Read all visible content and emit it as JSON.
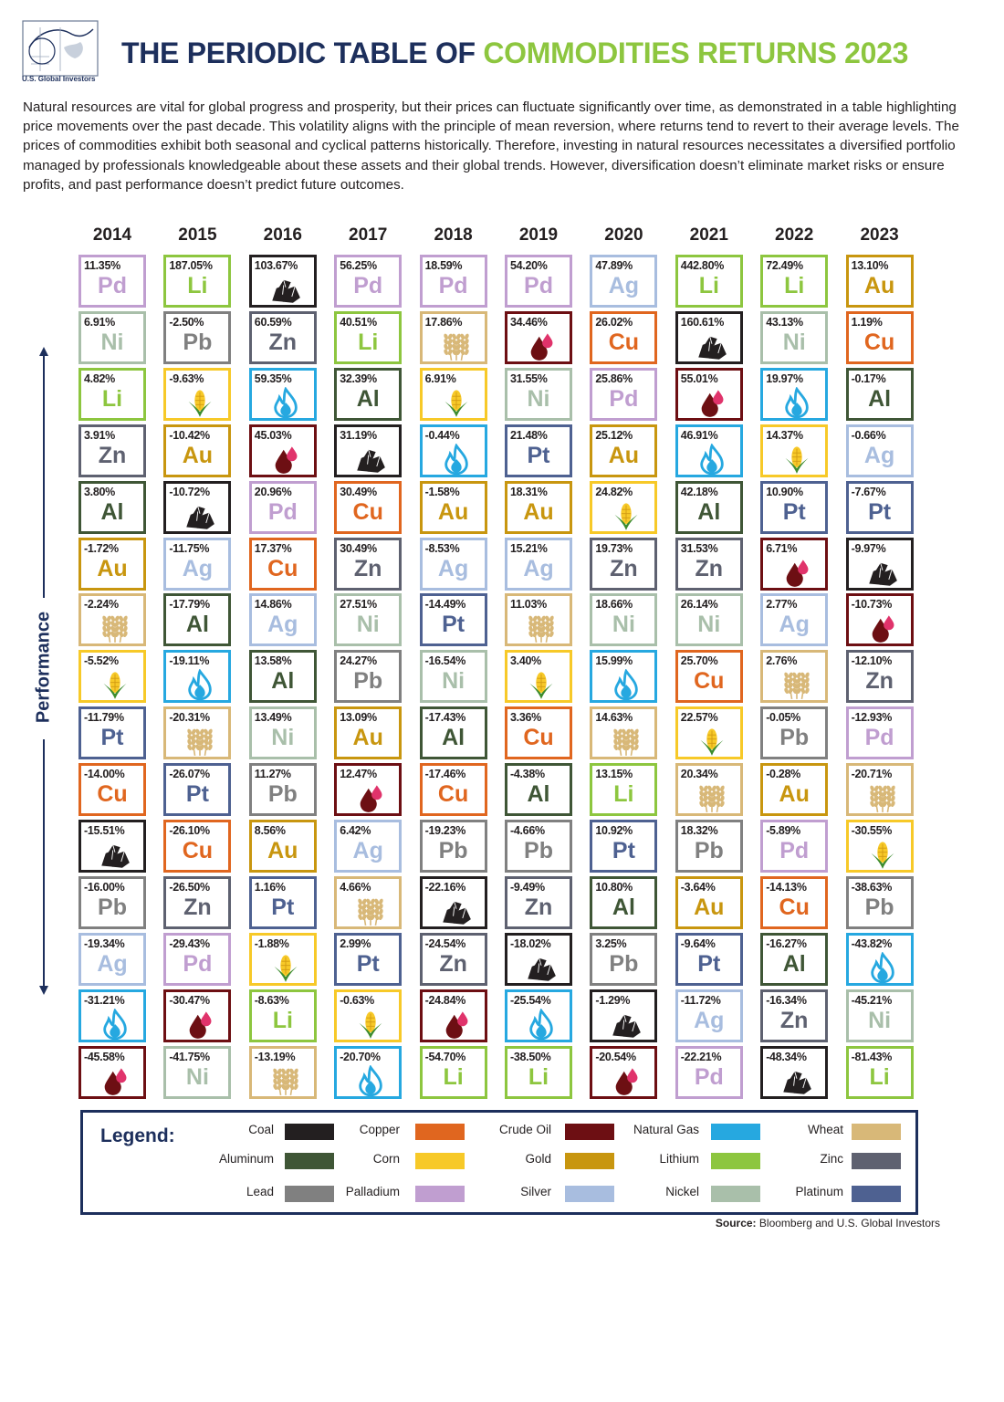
{
  "header": {
    "logo_text": "U.S. Global Investors",
    "title_part1": "THE PERIODIC TABLE OF ",
    "title_part2": "COMMODITIES RETURNS 2023",
    "intro": "Natural resources are vital for global progress and prosperity, but their prices can fluctuate significantly over time, as demonstrated in a table highlighting price movements over the past decade. This volatility aligns with the principle of mean reversion, where returns tend to revert to their average levels. The prices of commodities exhibit both seasonal and cyclical patterns historically. Therefore, investing in natural resources necessitates a diversified portfolio managed by professionals knowledgeable about these assets and their global trends. However, diversification doesn’t eliminate market risks or ensure profits, and past performance doesn’t predict future outcomes."
  },
  "axis_label": "Performance",
  "legend": {
    "title": "Legend:",
    "items": [
      {
        "name": "Coal",
        "color": "#231f20",
        "icon": "coal"
      },
      {
        "name": "Aluminum",
        "color": "#3f5636",
        "symbol": "Al"
      },
      {
        "name": "Lead",
        "color": "#808080",
        "symbol": "Pb"
      },
      {
        "name": "Copper",
        "color": "#e0661f",
        "symbol": "Cu"
      },
      {
        "name": "Corn",
        "color": "#f7c928",
        "icon": "corn"
      },
      {
        "name": "Palladium",
        "color": "#c09ed0",
        "symbol": "Pd"
      },
      {
        "name": "Crude Oil",
        "color": "#6d0f13",
        "icon": "oil"
      },
      {
        "name": "Gold",
        "color": "#c8960f",
        "symbol": "Au"
      },
      {
        "name": "Silver",
        "color": "#a8bddf",
        "symbol": "Ag"
      },
      {
        "name": "Natural Gas",
        "color": "#26a8e0",
        "icon": "gas"
      },
      {
        "name": "Lithium",
        "color": "#8dc63f",
        "symbol": "Li"
      },
      {
        "name": "Nickel",
        "color": "#a9bfaa",
        "symbol": "Ni"
      },
      {
        "name": "Wheat",
        "color": "#d8b878",
        "icon": "wheat"
      },
      {
        "name": "Zinc",
        "color": "#5e6170",
        "symbol": "Zn"
      },
      {
        "name": "Platinum",
        "color": "#4e6191",
        "symbol": "Pt"
      }
    ]
  },
  "table": {
    "columns": [
      {
        "year": "2014",
        "cells": [
          {
            "r": "11.35%",
            "c": "Palladium"
          },
          {
            "r": "6.91%",
            "c": "Nickel"
          },
          {
            "r": "4.82%",
            "c": "Lithium"
          },
          {
            "r": "3.91%",
            "c": "Zinc"
          },
          {
            "r": "3.80%",
            "c": "Aluminum"
          },
          {
            "r": "-1.72%",
            "c": "Gold"
          },
          {
            "r": "-2.24%",
            "c": "Wheat"
          },
          {
            "r": "-5.52%",
            "c": "Corn"
          },
          {
            "r": "-11.79%",
            "c": "Platinum"
          },
          {
            "r": "-14.00%",
            "c": "Copper"
          },
          {
            "r": "-15.51%",
            "c": "Coal"
          },
          {
            "r": "-16.00%",
            "c": "Lead"
          },
          {
            "r": "-19.34%",
            "c": "Silver"
          },
          {
            "r": "-31.21%",
            "c": "Natural Gas"
          },
          {
            "r": "-45.58%",
            "c": "Crude Oil"
          }
        ]
      },
      {
        "year": "2015",
        "cells": [
          {
            "r": "187.05%",
            "c": "Lithium"
          },
          {
            "r": "-2.50%",
            "c": "Lead"
          },
          {
            "r": "-9.63%",
            "c": "Corn"
          },
          {
            "r": "-10.42%",
            "c": "Gold"
          },
          {
            "r": "-10.72%",
            "c": "Coal"
          },
          {
            "r": "-11.75%",
            "c": "Silver"
          },
          {
            "r": "-17.79%",
            "c": "Aluminum"
          },
          {
            "r": "-19.11%",
            "c": "Natural Gas"
          },
          {
            "r": "-20.31%",
            "c": "Wheat"
          },
          {
            "r": "-26.07%",
            "c": "Platinum"
          },
          {
            "r": "-26.10%",
            "c": "Copper"
          },
          {
            "r": "-26.50%",
            "c": "Zinc"
          },
          {
            "r": "-29.43%",
            "c": "Palladium"
          },
          {
            "r": "-30.47%",
            "c": "Crude Oil"
          },
          {
            "r": "-41.75%",
            "c": "Nickel"
          }
        ]
      },
      {
        "year": "2016",
        "cells": [
          {
            "r": "103.67%",
            "c": "Coal"
          },
          {
            "r": "60.59%",
            "c": "Zinc"
          },
          {
            "r": "59.35%",
            "c": "Natural Gas"
          },
          {
            "r": "45.03%",
            "c": "Crude Oil"
          },
          {
            "r": "20.96%",
            "c": "Palladium"
          },
          {
            "r": "17.37%",
            "c": "Copper"
          },
          {
            "r": "14.86%",
            "c": "Silver"
          },
          {
            "r": "13.58%",
            "c": "Aluminum"
          },
          {
            "r": "13.49%",
            "c": "Nickel"
          },
          {
            "r": "11.27%",
            "c": "Lead"
          },
          {
            "r": "8.56%",
            "c": "Gold"
          },
          {
            "r": "1.16%",
            "c": "Platinum"
          },
          {
            "r": "-1.88%",
            "c": "Corn"
          },
          {
            "r": "-8.63%",
            "c": "Lithium"
          },
          {
            "r": "-13.19%",
            "c": "Wheat"
          }
        ]
      },
      {
        "year": "2017",
        "cells": [
          {
            "r": "56.25%",
            "c": "Palladium"
          },
          {
            "r": "40.51%",
            "c": "Lithium"
          },
          {
            "r": "32.39%",
            "c": "Aluminum"
          },
          {
            "r": "31.19%",
            "c": "Coal"
          },
          {
            "r": "30.49%",
            "c": "Copper"
          },
          {
            "r": "30.49%",
            "c": "Zinc"
          },
          {
            "r": "27.51%",
            "c": "Nickel"
          },
          {
            "r": "24.27%",
            "c": "Lead"
          },
          {
            "r": "13.09%",
            "c": "Gold"
          },
          {
            "r": "12.47%",
            "c": "Crude Oil"
          },
          {
            "r": "6.42%",
            "c": "Silver"
          },
          {
            "r": "4.66%",
            "c": "Wheat"
          },
          {
            "r": "2.99%",
            "c": "Platinum"
          },
          {
            "r": "-0.63%",
            "c": "Corn"
          },
          {
            "r": "-20.70%",
            "c": "Natural Gas"
          }
        ]
      },
      {
        "year": "2018",
        "cells": [
          {
            "r": "18.59%",
            "c": "Palladium"
          },
          {
            "r": "17.86%",
            "c": "Wheat"
          },
          {
            "r": "6.91%",
            "c": "Corn"
          },
          {
            "r": "-0.44%",
            "c": "Natural Gas"
          },
          {
            "r": "-1.58%",
            "c": "Gold"
          },
          {
            "r": "-8.53%",
            "c": "Silver"
          },
          {
            "r": "-14.49%",
            "c": "Platinum"
          },
          {
            "r": "-16.54%",
            "c": "Nickel"
          },
          {
            "r": "-17.43%",
            "c": "Aluminum"
          },
          {
            "r": "-17.46%",
            "c": "Copper"
          },
          {
            "r": "-19.23%",
            "c": "Lead"
          },
          {
            "r": "-22.16%",
            "c": "Coal"
          },
          {
            "r": "-24.54%",
            "c": "Zinc"
          },
          {
            "r": "-24.84%",
            "c": "Crude Oil"
          },
          {
            "r": "-54.70%",
            "c": "Lithium"
          }
        ]
      },
      {
        "year": "2019",
        "cells": [
          {
            "r": "54.20%",
            "c": "Palladium"
          },
          {
            "r": "34.46%",
            "c": "Crude Oil"
          },
          {
            "r": "31.55%",
            "c": "Nickel"
          },
          {
            "r": "21.48%",
            "c": "Platinum"
          },
          {
            "r": "18.31%",
            "c": "Gold"
          },
          {
            "r": "15.21%",
            "c": "Silver"
          },
          {
            "r": "11.03%",
            "c": "Wheat"
          },
          {
            "r": "3.40%",
            "c": "Corn"
          },
          {
            "r": "3.36%",
            "c": "Copper"
          },
          {
            "r": "-4.38%",
            "c": "Aluminum"
          },
          {
            "r": "-4.66%",
            "c": "Lead"
          },
          {
            "r": "-9.49%",
            "c": "Zinc"
          },
          {
            "r": "-18.02%",
            "c": "Coal"
          },
          {
            "r": "-25.54%",
            "c": "Natural Gas"
          },
          {
            "r": "-38.50%",
            "c": "Lithium"
          }
        ]
      },
      {
        "year": "2020",
        "cells": [
          {
            "r": "47.89%",
            "c": "Silver"
          },
          {
            "r": "26.02%",
            "c": "Copper"
          },
          {
            "r": "25.86%",
            "c": "Palladium"
          },
          {
            "r": "25.12%",
            "c": "Gold"
          },
          {
            "r": "24.82%",
            "c": "Corn"
          },
          {
            "r": "19.73%",
            "c": "Zinc"
          },
          {
            "r": "18.66%",
            "c": "Nickel"
          },
          {
            "r": "15.99%",
            "c": "Natural Gas"
          },
          {
            "r": "14.63%",
            "c": "Wheat"
          },
          {
            "r": "13.15%",
            "c": "Lithium"
          },
          {
            "r": "10.92%",
            "c": "Platinum"
          },
          {
            "r": "10.80%",
            "c": "Aluminum"
          },
          {
            "r": "3.25%",
            "c": "Lead"
          },
          {
            "r": "-1.29%",
            "c": "Coal"
          },
          {
            "r": "-20.54%",
            "c": "Crude Oil"
          }
        ]
      },
      {
        "year": "2021",
        "cells": [
          {
            "r": "442.80%",
            "c": "Lithium"
          },
          {
            "r": "160.61%",
            "c": "Coal"
          },
          {
            "r": "55.01%",
            "c": "Crude Oil"
          },
          {
            "r": "46.91%",
            "c": "Natural Gas"
          },
          {
            "r": "42.18%",
            "c": "Aluminum"
          },
          {
            "r": "31.53%",
            "c": "Zinc"
          },
          {
            "r": "26.14%",
            "c": "Nickel"
          },
          {
            "r": "25.70%",
            "c": "Copper"
          },
          {
            "r": "22.57%",
            "c": "Corn"
          },
          {
            "r": "20.34%",
            "c": "Wheat"
          },
          {
            "r": "18.32%",
            "c": "Lead"
          },
          {
            "r": "-3.64%",
            "c": "Gold"
          },
          {
            "r": "-9.64%",
            "c": "Platinum"
          },
          {
            "r": "-11.72%",
            "c": "Silver"
          },
          {
            "r": "-22.21%",
            "c": "Palladium"
          }
        ]
      },
      {
        "year": "2022",
        "cells": [
          {
            "r": "72.49%",
            "c": "Lithium"
          },
          {
            "r": "43.13%",
            "c": "Nickel"
          },
          {
            "r": "19.97%",
            "c": "Natural Gas"
          },
          {
            "r": "14.37%",
            "c": "Corn"
          },
          {
            "r": "10.90%",
            "c": "Platinum"
          },
          {
            "r": "6.71%",
            "c": "Crude Oil"
          },
          {
            "r": "2.77%",
            "c": "Silver"
          },
          {
            "r": "2.76%",
            "c": "Wheat"
          },
          {
            "r": "-0.05%",
            "c": "Lead"
          },
          {
            "r": "-0.28%",
            "c": "Gold"
          },
          {
            "r": "-5.89%",
            "c": "Palladium"
          },
          {
            "r": "-14.13%",
            "c": "Copper"
          },
          {
            "r": "-16.27%",
            "c": "Aluminum"
          },
          {
            "r": "-16.34%",
            "c": "Zinc"
          },
          {
            "r": "-48.34%",
            "c": "Coal"
          }
        ]
      },
      {
        "year": "2023",
        "cells": [
          {
            "r": "13.10%",
            "c": "Gold"
          },
          {
            "r": "1.19%",
            "c": "Copper"
          },
          {
            "r": "-0.17%",
            "c": "Aluminum"
          },
          {
            "r": "-0.66%",
            "c": "Silver"
          },
          {
            "r": "-7.67%",
            "c": "Platinum"
          },
          {
            "r": "-9.97%",
            "c": "Coal"
          },
          {
            "r": "-10.73%",
            "c": "Crude Oil"
          },
          {
            "r": "-12.10%",
            "c": "Zinc"
          },
          {
            "r": "-12.93%",
            "c": "Palladium"
          },
          {
            "r": "-20.71%",
            "c": "Wheat"
          },
          {
            "r": "-30.55%",
            "c": "Corn"
          },
          {
            "r": "-38.63%",
            "c": "Lead"
          },
          {
            "r": "-43.82%",
            "c": "Natural Gas"
          },
          {
            "r": "-45.21%",
            "c": "Nickel"
          },
          {
            "r": "-81.43%",
            "c": "Lithium"
          }
        ]
      }
    ]
  },
  "source": {
    "label": "Source:",
    "text": " Bloomberg and U.S. Global Investors"
  }
}
